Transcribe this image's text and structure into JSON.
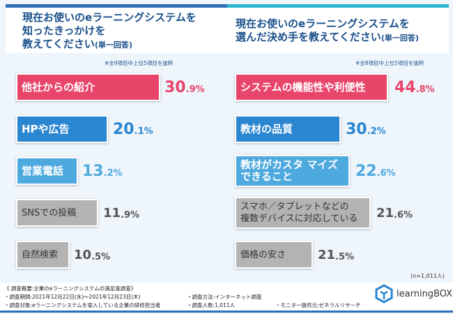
{
  "colors": {
    "pink": "#e8456b",
    "blue": "#2a86d1",
    "lightblue": "#4ea9df",
    "gray": "#b3b3b3"
  },
  "chart_data": [
    {
      "type": "bar",
      "title": "現在お使いのeラーニングシステムを知ったきっかけを教えてください",
      "title_suffix": "(単一回答)",
      "note": "※全9項目中上位5項目を抜粋",
      "categories": [
        "他社からの紹介",
        "HPや広告",
        "営業電話",
        "SNSでの投稿",
        "自然検索"
      ],
      "values": [
        30.9,
        20.1,
        13.2,
        11.9,
        10.5
      ],
      "value_int": [
        "30",
        ".9%",
        "20",
        ".1%",
        "13",
        ".2%",
        "11",
        ".9%",
        "10",
        ".5%"
      ]
    },
    {
      "type": "bar",
      "title": "現在お使いのeラーニングシステムを選んだ決め手を教えてください",
      "title_suffix": "(単一回答)",
      "note": "※全8項目中上位5項目を抜粋",
      "categories": [
        "システムの機能性や利便性",
        "教材の品質",
        "教材がカスタマイズできること",
        "スマホ／タブレットなどの複数デバイスに対応している",
        "価格の安さ"
      ],
      "values": [
        44.8,
        30.2,
        22.6,
        21.6,
        21.5
      ]
    }
  ],
  "labels": {
    "left_title": [
      "現在お使いのeラーニングシステムを",
      "知ったきっかけを",
      "教えてください"
    ],
    "right_title": [
      "現在お使いのeラーニングシステムを",
      "選んだ決め手を教えてください"
    ],
    "suffix": "(単一回答)",
    "left_bars": [
      "他社からの紹介",
      "HPや広告",
      "営業電話",
      "SNSでの投稿",
      "自然検索"
    ],
    "left_vals": [
      [
        "30",
        ".9%"
      ],
      [
        "20",
        ".1%"
      ],
      [
        "13",
        ".2%"
      ],
      [
        "11",
        ".9%"
      ],
      [
        "10",
        ".5%"
      ]
    ],
    "right_bars": [
      "システムの機能性や利便性",
      "教材の品質",
      "教材がカスタ マイズ",
      "できること",
      "スマホ／タブレットなどの",
      "複数デバイスに対応している",
      "価格の安さ"
    ],
    "right_vals": [
      [
        "44",
        ".8%"
      ],
      [
        "30",
        ".2%"
      ],
      [
        "22",
        ".6%"
      ],
      [
        "21",
        ".6%"
      ],
      [
        "21",
        ".5%"
      ]
    ],
    "left_note": "※全9項目中上位5項目を抜粋",
    "right_note": "※全8項目中上位5項目を抜粋",
    "n": "(n=1,011人)"
  },
  "footer": {
    "summary": "《 調査概要:企業のeラーニングシステムの満足度調査》",
    "period": "・調査期間:2021年12月22日(水)～2021年12月23日(木)",
    "target": "・調査対象:eラーニングシステムを導入している企業の研修担当者",
    "method": "・調査方法:インターネット調査",
    "count": "・調査人数:1,011人",
    "provider": "・モニター提供元:ゼネラルリサーチ",
    "logo": "learningBOX"
  }
}
